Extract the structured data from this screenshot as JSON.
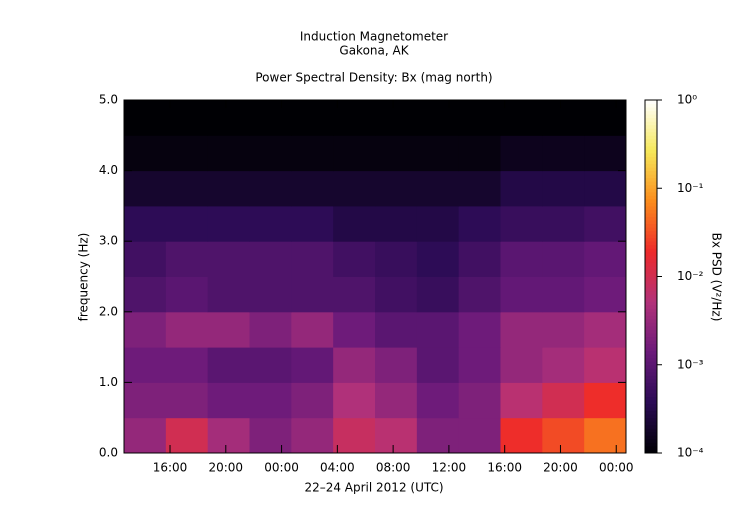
{
  "chart_data": {
    "type": "spectrogram",
    "title": "Induction Magnetometer",
    "subtitle": "Gakona, AK",
    "plot_title": "Power Spectral Density: Bx (mag north)",
    "x_label": "22–24 April 2012 (UTC)",
    "y_label": "frequency (Hz)",
    "xlim": [
      12.7,
      48.7
    ],
    "xticks": [
      {
        "value": 16,
        "label": "16:00"
      },
      {
        "value": 20,
        "label": "20:00"
      },
      {
        "value": 24,
        "label": "00:00"
      },
      {
        "value": 28,
        "label": "04:00"
      },
      {
        "value": 32,
        "label": "08:00"
      },
      {
        "value": 36,
        "label": "12:00"
      },
      {
        "value": 40,
        "label": "16:00"
      },
      {
        "value": 44,
        "label": "20:00"
      },
      {
        "value": 48,
        "label": "00:00"
      }
    ],
    "ylim": [
      0,
      5
    ],
    "yticks": [
      {
        "value": 0,
        "label": "0.0"
      },
      {
        "value": 1,
        "label": "1.0"
      },
      {
        "value": 2,
        "label": "2.0"
      },
      {
        "value": 3,
        "label": "3.0"
      },
      {
        "value": 4,
        "label": "4.0"
      },
      {
        "value": 5,
        "label": "5.0"
      }
    ],
    "x_bins": [
      12.7,
      15.7,
      18.7,
      21.7,
      24.7,
      27.7,
      30.7,
      33.7,
      36.7,
      39.7,
      42.7,
      45.7,
      48.7
    ],
    "y_bins": [
      0,
      0.5,
      1,
      1.5,
      2,
      2.5,
      3,
      3.5,
      4,
      4.5,
      5
    ],
    "values": [
      [
        0.003,
        0.01,
        0.004,
        0.002,
        0.003,
        0.008,
        0.006,
        0.002,
        0.002,
        0.02,
        0.03,
        0.05
      ],
      [
        0.002,
        0.002,
        0.0015,
        0.0015,
        0.002,
        0.005,
        0.003,
        0.0015,
        0.002,
        0.006,
        0.01,
        0.02
      ],
      [
        0.0015,
        0.0015,
        0.001,
        0.001,
        0.0012,
        0.003,
        0.002,
        0.001,
        0.0015,
        0.003,
        0.004,
        0.006
      ],
      [
        0.002,
        0.003,
        0.003,
        0.002,
        0.003,
        0.0015,
        0.001,
        0.001,
        0.0015,
        0.003,
        0.003,
        0.004
      ],
      [
        0.0008,
        0.001,
        0.0008,
        0.0008,
        0.0008,
        0.0008,
        0.0006,
        0.0005,
        0.0008,
        0.0012,
        0.0012,
        0.0015
      ],
      [
        0.0006,
        0.0008,
        0.0008,
        0.0008,
        0.0008,
        0.0006,
        0.0005,
        0.0004,
        0.0006,
        0.001,
        0.001,
        0.0012
      ],
      [
        0.0004,
        0.0004,
        0.0004,
        0.0004,
        0.0004,
        0.0003,
        0.0003,
        0.0003,
        0.0004,
        0.0005,
        0.0005,
        0.0006
      ],
      [
        0.0002,
        0.0002,
        0.0002,
        0.0002,
        0.0002,
        0.0002,
        0.0002,
        0.0002,
        0.0002,
        0.0003,
        0.0003,
        0.0003
      ],
      [
        0.00012,
        0.00012,
        0.00012,
        0.00012,
        0.00012,
        0.00012,
        0.00012,
        0.00012,
        0.00012,
        0.00015,
        0.00015,
        0.00015
      ],
      [
        0.0001,
        0.0001,
        0.0001,
        0.0001,
        0.0001,
        0.0001,
        0.0001,
        0.0001,
        0.0001,
        0.0001,
        0.0001,
        0.0001
      ]
    ],
    "colorbar": {
      "label": "Bx PSD (V²/Hz)",
      "scale": "log",
      "zlim": [
        0.0001,
        1
      ],
      "ticks": [
        {
          "value": 0.0001,
          "label": "10⁻⁴"
        },
        {
          "value": 0.001,
          "label": "10⁻³"
        },
        {
          "value": 0.01,
          "label": "10⁻²"
        },
        {
          "value": 0.1,
          "label": "10⁻¹"
        },
        {
          "value": 1,
          "label": "10⁰"
        }
      ],
      "colormap": [
        "#000004",
        "#2a0b54",
        "#6a1a7a",
        "#b2327a",
        "#ee2a2a",
        "#fb8c1c",
        "#f6e85a",
        "#ffffff"
      ]
    }
  }
}
